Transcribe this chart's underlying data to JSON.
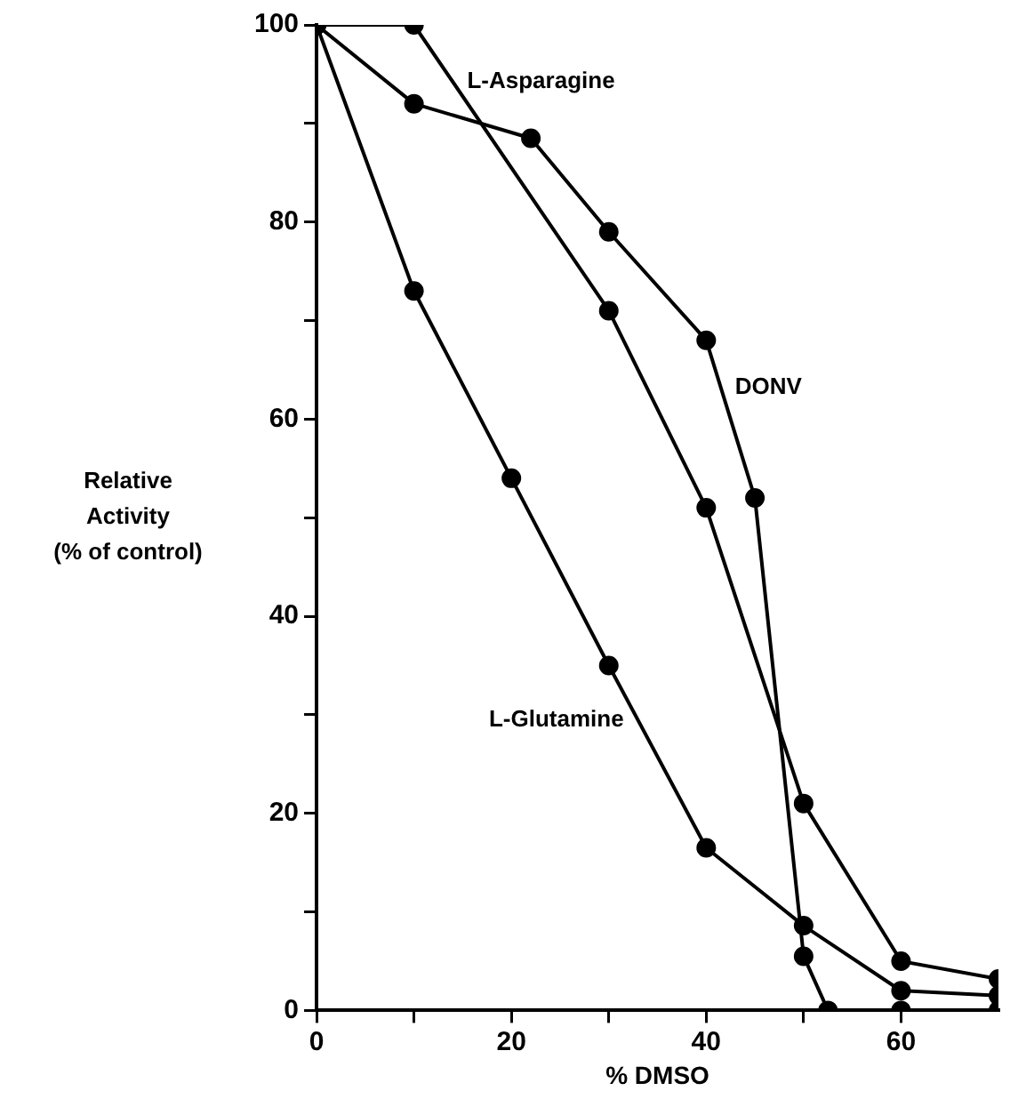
{
  "chart_data": {
    "type": "line",
    "xlabel": "% DMSO",
    "ylabel": "Relative\nActivity\n(% of control)",
    "xlim": [
      0,
      70
    ],
    "xticks": [
      0,
      {
        "value": 10,
        "label": null
      },
      20,
      {
        "value": 30,
        "label": null
      },
      40,
      {
        "value": 50,
        "label": null
      },
      60
    ],
    "ylim": [
      0,
      100
    ],
    "yticks": [
      0,
      {
        "value": 10,
        "label": null
      },
      20,
      {
        "value": 30,
        "label": null
      },
      40,
      {
        "value": 50,
        "label": null
      },
      60,
      {
        "value": 70,
        "label": null
      },
      80,
      {
        "value": 90,
        "label": null
      },
      100
    ],
    "grid": false,
    "legend": false,
    "marker": "circle",
    "line_style": "solid",
    "series": [
      {
        "name": "L-Asparagine",
        "color": "#000000",
        "x": [
          0,
          10,
          30,
          40,
          50,
          60,
          70
        ],
        "values": [
          100,
          100,
          71,
          51,
          21,
          5,
          3.2
        ]
      },
      {
        "name": "DONV",
        "color": "#000000",
        "x": [
          0,
          10,
          22,
          30,
          40,
          45,
          50,
          52.5,
          60,
          70
        ],
        "values": [
          100,
          92,
          88.5,
          79,
          68,
          52,
          5.5,
          0,
          0,
          0
        ]
      },
      {
        "name": "L-Glutamine",
        "color": "#000000",
        "x": [
          0,
          10,
          20,
          30,
          40,
          50,
          60,
          70
        ],
        "values": [
          100,
          73,
          54,
          35,
          16.5,
          8.6,
          2,
          1.5
        ]
      }
    ]
  }
}
